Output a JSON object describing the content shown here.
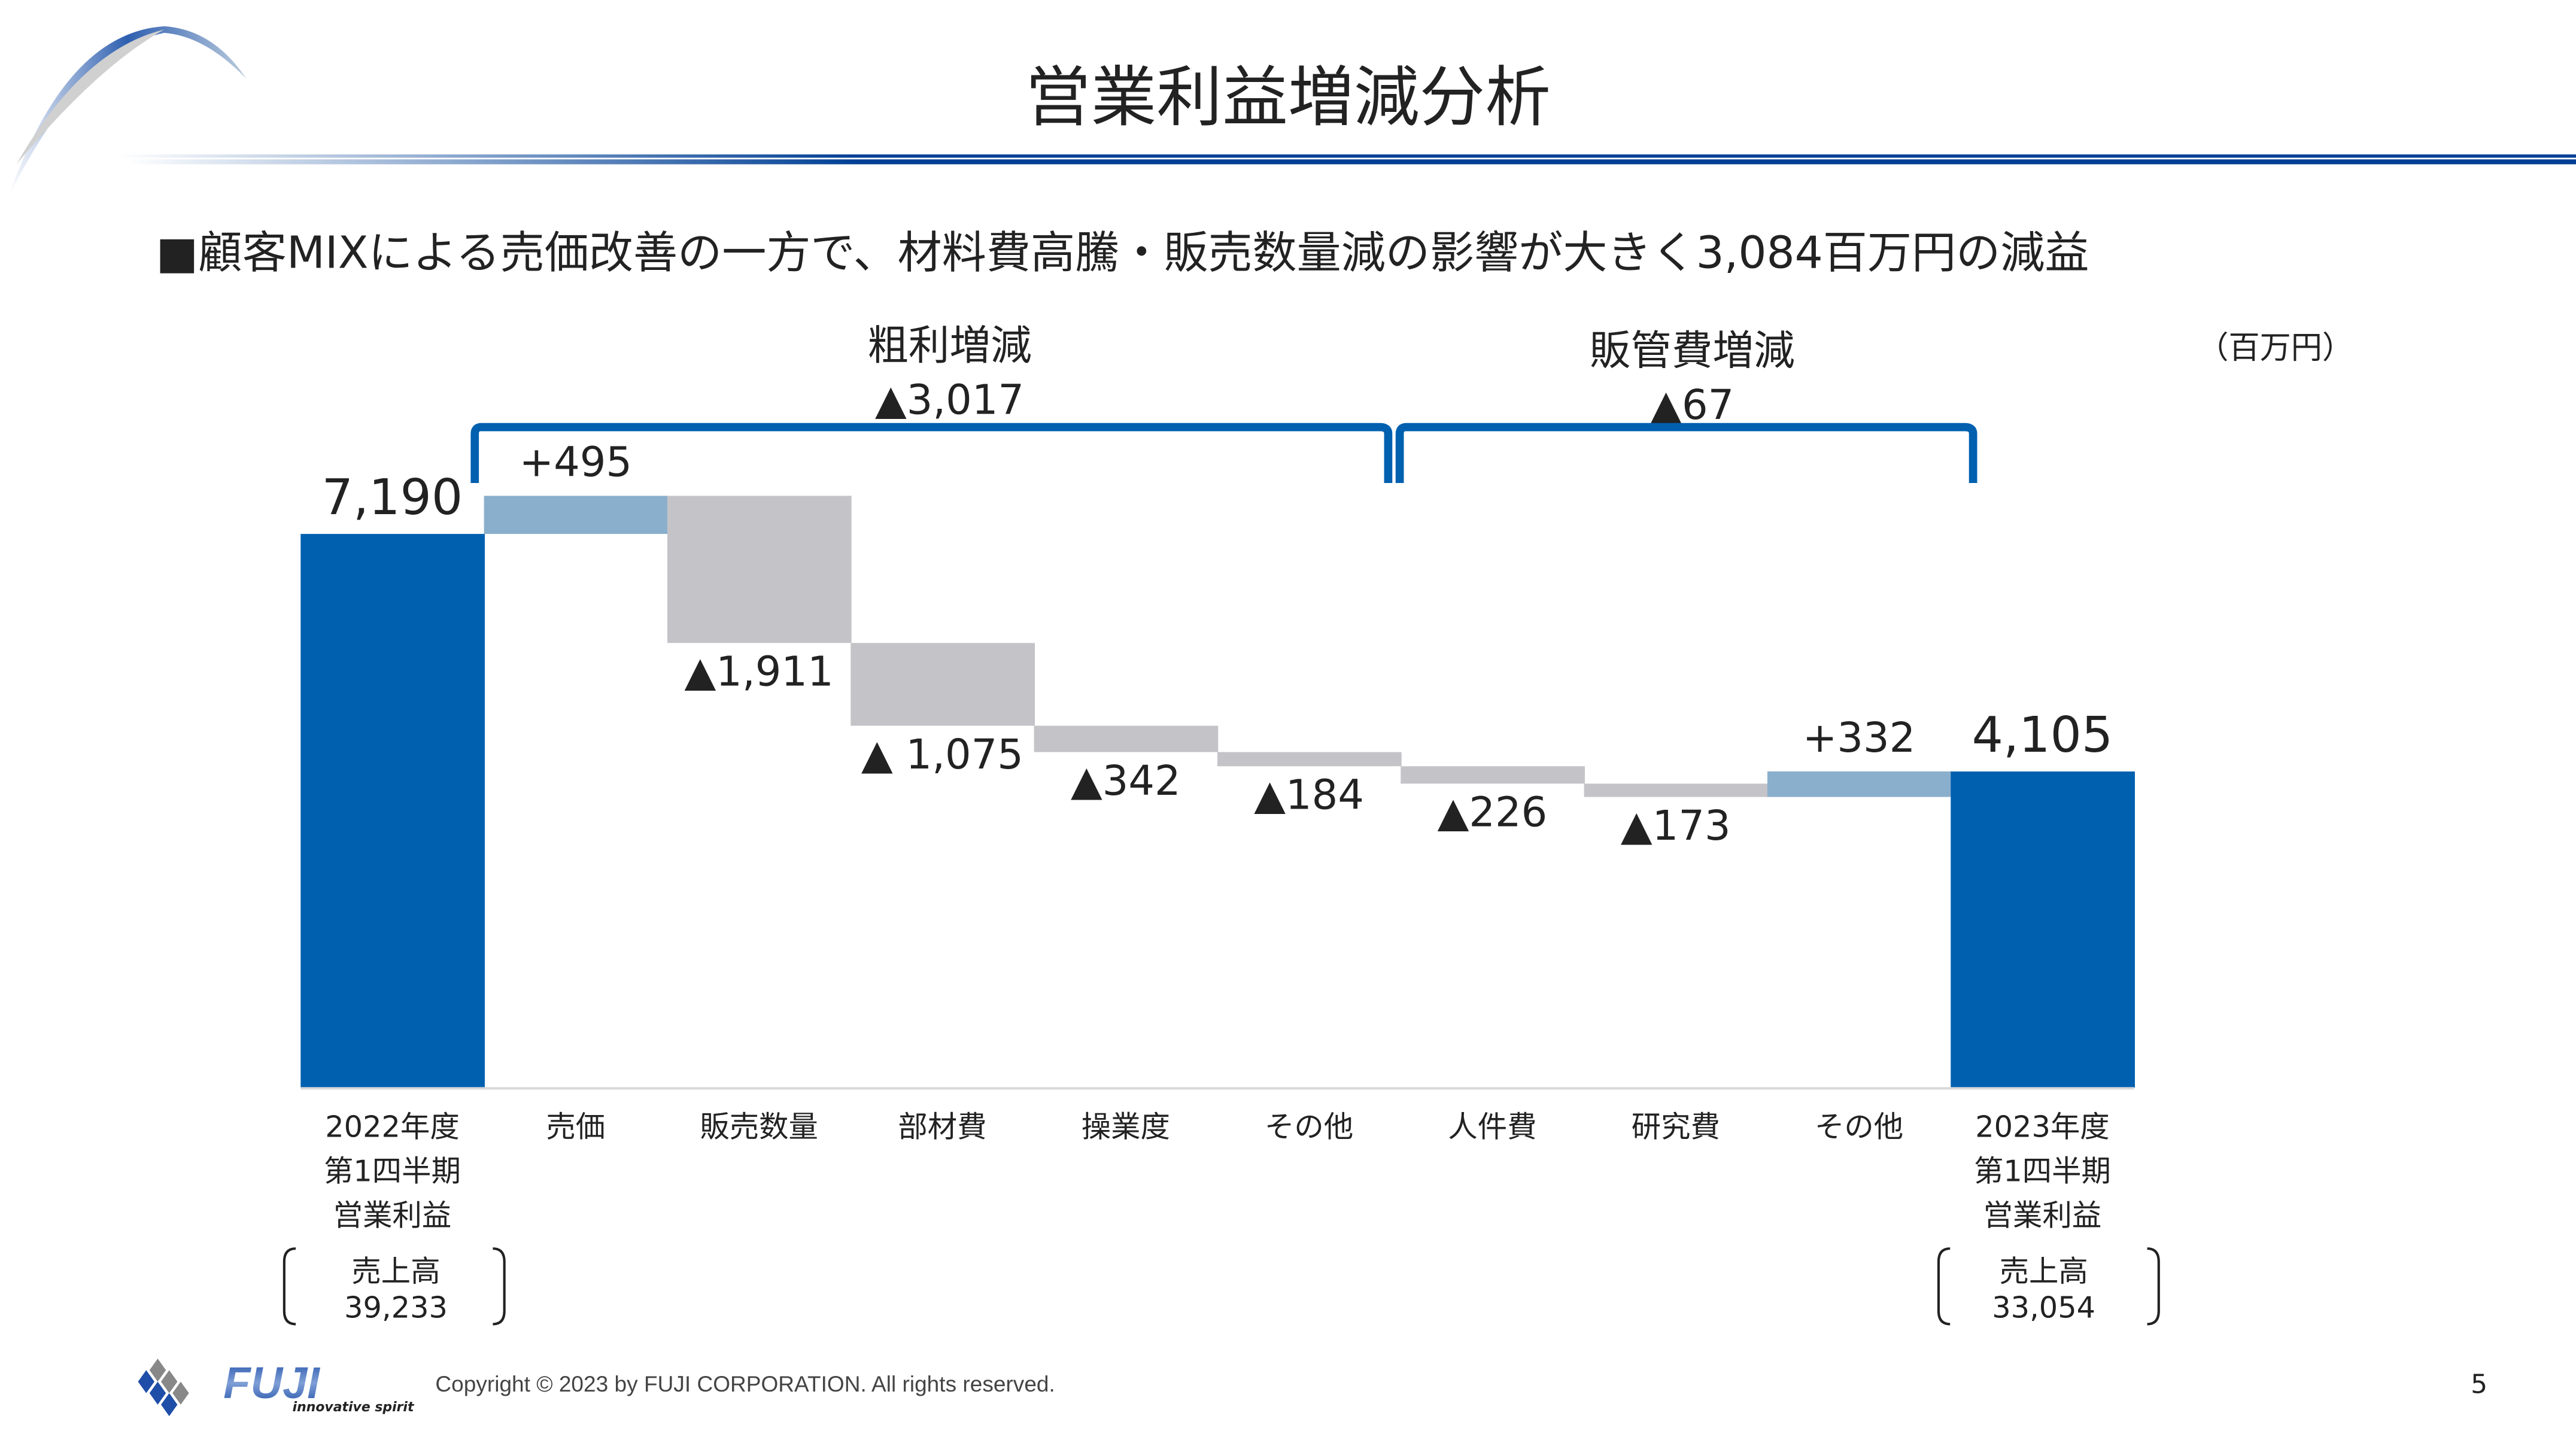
{
  "header": {
    "title": "営業利益増減分析"
  },
  "subtitle": "■顧客MIXによる売価改善の一方で、材料費高騰・販売数量減の影響が大きく3,084百万円の減益",
  "unit": "（百万円）",
  "groups": [
    {
      "label": "粗利増減",
      "value": "▲3,017"
    },
    {
      "label": "販管費増減",
      "value": "▲67"
    }
  ],
  "colors": {
    "total": "#0060b0",
    "increase": "#8aafcc",
    "decrease": "#c4c3c8",
    "bracket": "#0060b0"
  },
  "chart_data": {
    "type": "waterfall",
    "categories": [
      [
        "2022年度",
        "第1四半期",
        "営業利益"
      ],
      [
        "売価"
      ],
      [
        "販売数量"
      ],
      [
        "部材費"
      ],
      [
        "操業度"
      ],
      [
        "その他"
      ],
      [
        "人件費"
      ],
      [
        "研究費"
      ],
      [
        "その他"
      ],
      [
        "2023年度",
        "第1四半期",
        "営業利益"
      ]
    ],
    "values": [
      7190,
      495,
      -1911,
      -1075,
      -342,
      -184,
      -226,
      -173,
      332,
      4105
    ],
    "kinds": [
      "total",
      "increase",
      "decrease",
      "decrease",
      "decrease",
      "decrease",
      "decrease",
      "decrease",
      "increase",
      "total"
    ],
    "labels": [
      "7,190",
      "+495",
      "▲1,911",
      "▲ 1,075",
      "▲342",
      "▲184",
      "▲226",
      "▲173",
      "+332",
      "4,105"
    ],
    "ylim": [
      0,
      7800
    ]
  },
  "sales": [
    {
      "label": "売上高",
      "value": "39,233"
    },
    {
      "label": "売上高",
      "value": "33,054"
    }
  ],
  "footer": {
    "logo_text": "FUJI",
    "logo_tagline": "innovative spirit",
    "copyright": "Copyright © 2023 by FUJI CORPORATION. All rights reserved.",
    "page": "5"
  }
}
